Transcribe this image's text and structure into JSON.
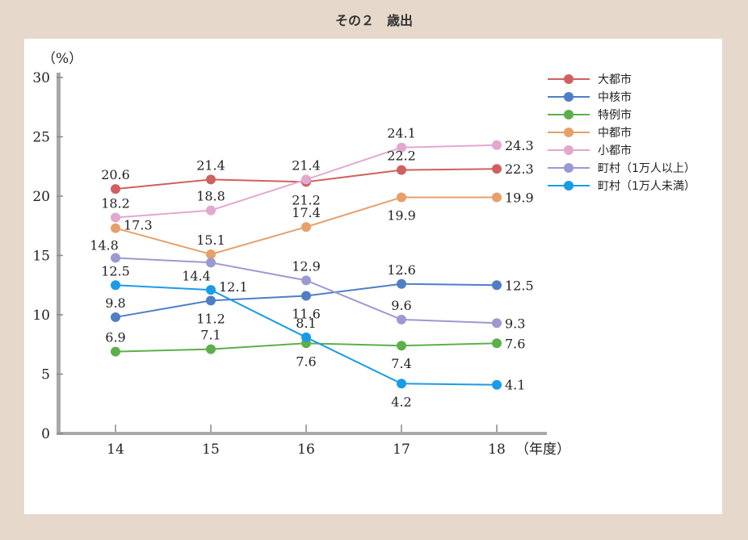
{
  "page": {
    "title": "その２　歳出"
  },
  "chart_data": {
    "type": "line",
    "title": "その２　歳出",
    "ylabel": "（%）",
    "xlabel": "（年度）",
    "x": [
      "14",
      "15",
      "16",
      "17",
      "18"
    ],
    "ylim": [
      0,
      30
    ],
    "yticks": [
      "0",
      "5",
      "10",
      "15",
      "20",
      "25",
      "30"
    ],
    "grid": false,
    "legend_position": "top-right",
    "series": [
      {
        "name": "大都市",
        "color": "#d06060",
        "values": [
          20.6,
          21.4,
          21.2,
          22.2,
          22.3
        ],
        "labels": [
          "20.6",
          "21.4",
          "21.2",
          "22.2",
          "22.3"
        ]
      },
      {
        "name": "中核市",
        "color": "#4f7ec6",
        "values": [
          9.8,
          11.2,
          11.6,
          12.6,
          12.5
        ],
        "labels": [
          "9.8",
          "11.2",
          "11.6",
          "12.6",
          "12.5"
        ]
      },
      {
        "name": "特例市",
        "color": "#5cb04a",
        "values": [
          6.9,
          7.1,
          7.6,
          7.4,
          7.6
        ],
        "labels": [
          "6.9",
          "7.1",
          "7.6",
          "7.4",
          "7.6"
        ]
      },
      {
        "name": "中都市",
        "color": "#e6a06a",
        "values": [
          17.3,
          15.1,
          17.4,
          19.9,
          19.9
        ],
        "labels": [
          "17.3",
          "15.1",
          "17.4",
          "19.9",
          "19.9"
        ]
      },
      {
        "name": "小都市",
        "color": "#e2a8d0",
        "values": [
          18.2,
          18.8,
          21.4,
          24.1,
          24.3
        ],
        "labels": [
          "18.2",
          "18.8",
          "21.4",
          "24.1",
          "24.3"
        ]
      },
      {
        "name": "町村（1万人以上）",
        "color": "#9b9ad0",
        "values": [
          14.8,
          14.4,
          12.9,
          9.6,
          9.3
        ],
        "labels": [
          "14.8",
          "14.4",
          "12.9",
          "9.6",
          "9.3"
        ]
      },
      {
        "name": "町村（1万人未満）",
        "color": "#1a9be8",
        "values": [
          12.5,
          12.1,
          8.1,
          4.2,
          4.1
        ],
        "labels": [
          "12.5",
          "12.1",
          "8.1",
          "4.2",
          "4.1"
        ]
      }
    ]
  }
}
